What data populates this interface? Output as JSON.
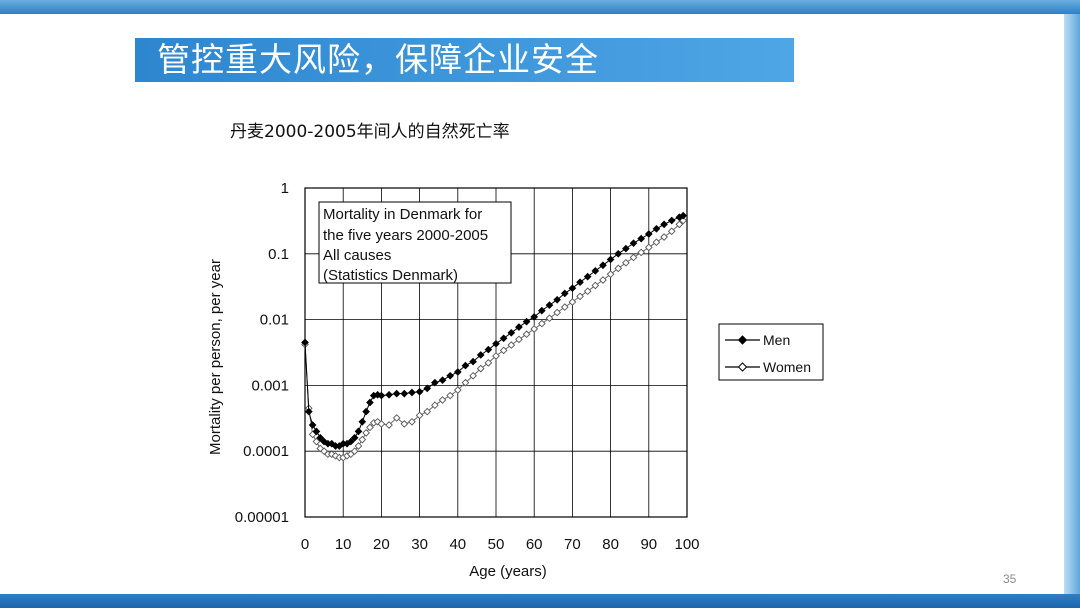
{
  "slide": {
    "title": "管控重大风险，保障企业安全",
    "subtitle": "丹麦2000-2005年间人的自然死亡率",
    "page_number": "35"
  },
  "chart_data": {
    "type": "scatter",
    "x_axis": {
      "label": "Age (years)",
      "range": [
        0,
        100
      ],
      "ticks": [
        "0",
        "10",
        "20",
        "30",
        "40",
        "50",
        "60",
        "70",
        "80",
        "90",
        "100"
      ]
    },
    "y_axis": {
      "label": "Mortality per person, per year",
      "scale": "log",
      "range": [
        1e-05,
        1
      ],
      "ticks": [
        "1",
        "0.1",
        "0.01",
        "0.001",
        "0.0001",
        "0.00001"
      ]
    },
    "grid": true,
    "note": [
      "Mortality in Denmark for",
      "the five years 2000-2005",
      "All causes",
      "(Statistics Denmark)"
    ],
    "legend_position": "right",
    "series": [
      {
        "name": "Men",
        "color": "#000000",
        "marker": "filled-diamond",
        "x": [
          0,
          1,
          2,
          3,
          4,
          5,
          6,
          7,
          8,
          9,
          10,
          11,
          12,
          13,
          14,
          15,
          16,
          17,
          18,
          19,
          20,
          22,
          24,
          26,
          28,
          30,
          32,
          34,
          36,
          38,
          40,
          42,
          44,
          46,
          48,
          50,
          52,
          54,
          56,
          58,
          60,
          62,
          64,
          66,
          68,
          70,
          72,
          74,
          76,
          78,
          80,
          82,
          84,
          86,
          88,
          90,
          92,
          94,
          96,
          98,
          99
        ],
        "y": [
          0.0045,
          0.0004,
          0.00025,
          0.0002,
          0.00016,
          0.00014,
          0.00013,
          0.00013,
          0.00012,
          0.00012,
          0.00013,
          0.00013,
          0.00014,
          0.00016,
          0.0002,
          0.00028,
          0.0004,
          0.00055,
          0.0007,
          0.00072,
          0.0007,
          0.00072,
          0.00075,
          0.00075,
          0.00078,
          0.0008,
          0.0009,
          0.0011,
          0.0012,
          0.0014,
          0.0016,
          0.002,
          0.0023,
          0.0029,
          0.0035,
          0.0043,
          0.0052,
          0.0063,
          0.0077,
          0.0093,
          0.011,
          0.0137,
          0.0166,
          0.02,
          0.025,
          0.03,
          0.037,
          0.045,
          0.055,
          0.067,
          0.082,
          0.1,
          0.12,
          0.145,
          0.17,
          0.2,
          0.24,
          0.28,
          0.32,
          0.36,
          0.38
        ]
      },
      {
        "name": "Women",
        "color": "#666666",
        "marker": "open-diamond",
        "x": [
          0,
          1,
          2,
          3,
          4,
          5,
          6,
          7,
          8,
          9,
          10,
          11,
          12,
          13,
          14,
          15,
          16,
          17,
          18,
          19,
          20,
          22,
          24,
          26,
          28,
          30,
          32,
          34,
          36,
          38,
          40,
          42,
          44,
          46,
          48,
          50,
          52,
          54,
          56,
          58,
          60,
          62,
          64,
          66,
          68,
          70,
          72,
          74,
          76,
          78,
          80,
          82,
          84,
          86,
          88,
          90,
          92,
          94,
          96,
          98,
          99
        ],
        "y": [
          0.0042,
          0.00045,
          0.00018,
          0.00014,
          0.00011,
          0.0001,
          9e-05,
          9e-05,
          8.5e-05,
          8e-05,
          8e-05,
          8.5e-05,
          9e-05,
          0.0001,
          0.00012,
          0.00015,
          0.00019,
          0.00023,
          0.00027,
          0.00028,
          0.00026,
          0.00025,
          0.00032,
          0.00026,
          0.00028,
          0.00035,
          0.0004,
          0.0005,
          0.0006,
          0.0007,
          0.00085,
          0.0011,
          0.0014,
          0.0018,
          0.0022,
          0.0028,
          0.0034,
          0.0041,
          0.005,
          0.006,
          0.0072,
          0.0087,
          0.0105,
          0.0128,
          0.0155,
          0.0185,
          0.0225,
          0.027,
          0.033,
          0.04,
          0.049,
          0.06,
          0.073,
          0.088,
          0.105,
          0.125,
          0.15,
          0.18,
          0.22,
          0.28,
          0.32
        ]
      }
    ]
  }
}
